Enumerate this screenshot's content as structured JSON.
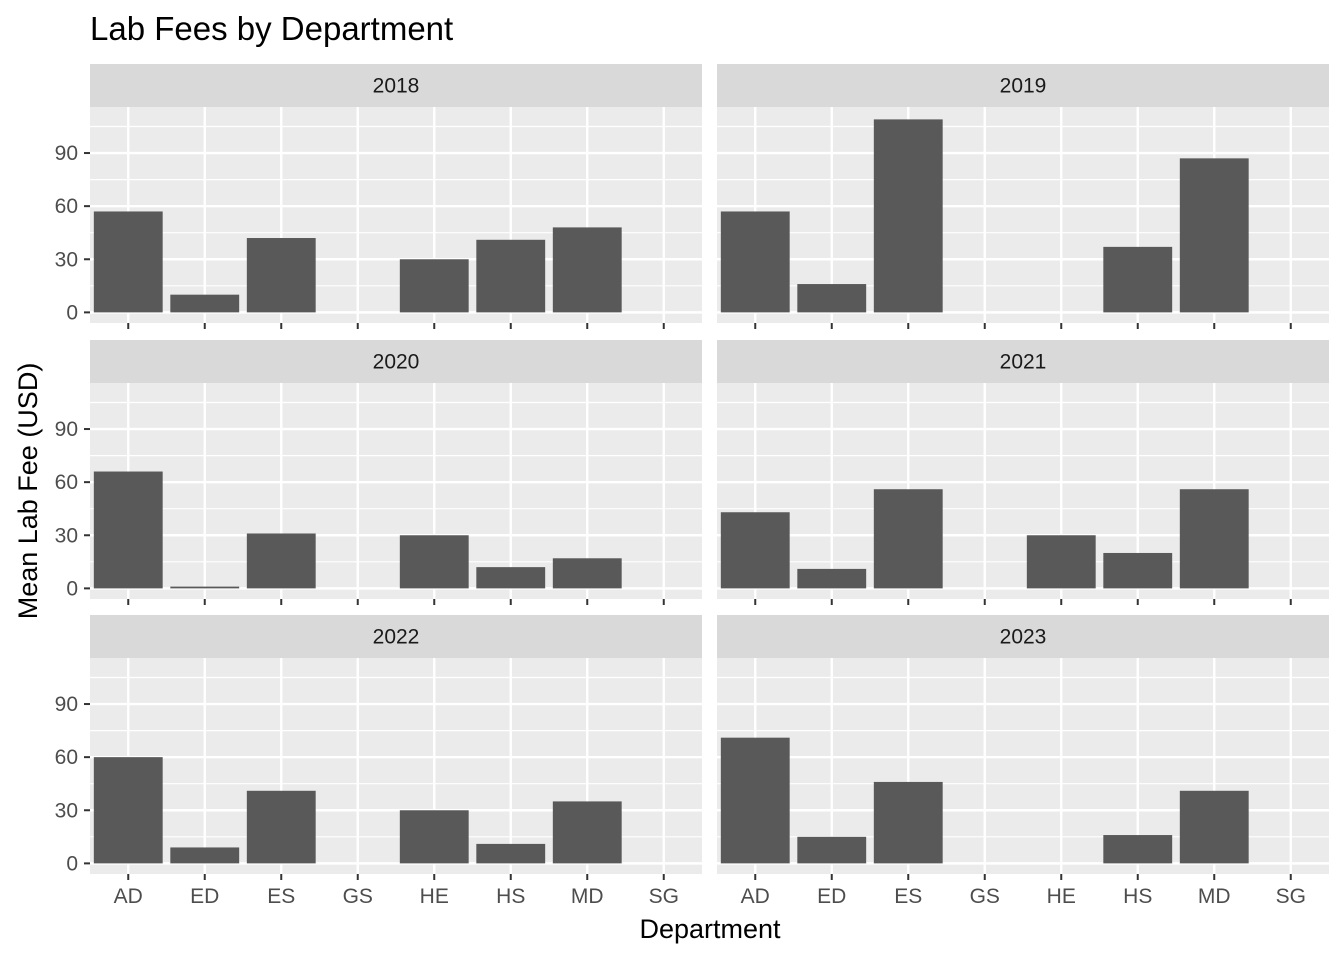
{
  "chart_data": {
    "type": "bar",
    "title": "Lab Fees by Department",
    "xlabel": "Department",
    "ylabel": "Mean Lab Fee (USD)",
    "categories": [
      "AD",
      "ED",
      "ES",
      "GS",
      "HE",
      "HS",
      "MD",
      "SG"
    ],
    "yticks": [
      0,
      30,
      60,
      90
    ],
    "ylim": [
      -6,
      116
    ],
    "facets": [
      {
        "label": "2018",
        "values": [
          57,
          10,
          42,
          null,
          30,
          41,
          48,
          null
        ]
      },
      {
        "label": "2019",
        "values": [
          57,
          16,
          109,
          null,
          null,
          37,
          87,
          null
        ]
      },
      {
        "label": "2020",
        "values": [
          66,
          1,
          31,
          null,
          30,
          12,
          17,
          null
        ]
      },
      {
        "label": "2021",
        "values": [
          43,
          11,
          56,
          null,
          30,
          20,
          56,
          null
        ]
      },
      {
        "label": "2022",
        "values": [
          60,
          9,
          41,
          null,
          30,
          11,
          35,
          null
        ]
      },
      {
        "label": "2023",
        "values": [
          71,
          15,
          46,
          null,
          null,
          16,
          41,
          null
        ]
      }
    ],
    "grid": true,
    "legend": "none",
    "colors": {
      "bar": "#595959",
      "panel_background": "#ebebeb",
      "gridline": "#ffffff",
      "strip_background": "#d9d9d9",
      "tick_mark": "#333333"
    }
  }
}
